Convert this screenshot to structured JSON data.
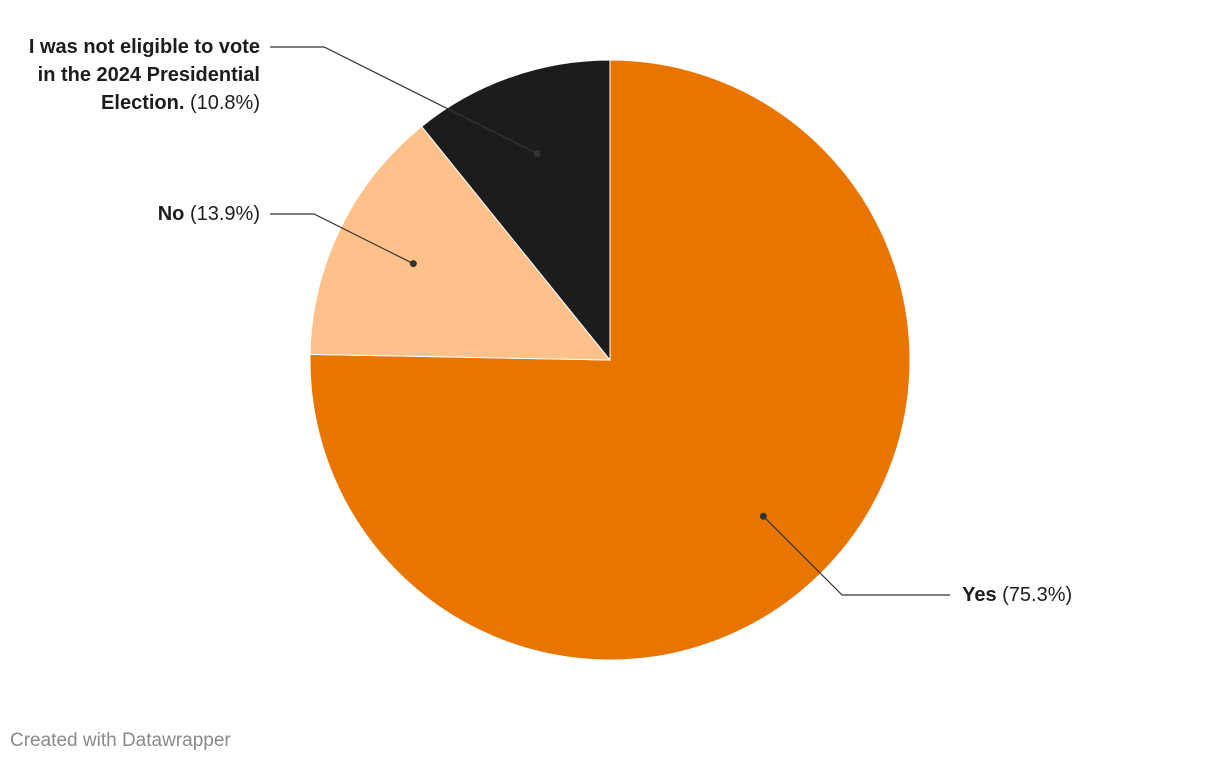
{
  "chart_data": {
    "type": "pie",
    "categories": [
      "Yes",
      "No",
      "I was not eligible to vote in the 2024 Presidential Election."
    ],
    "values": [
      75.3,
      13.9,
      10.8
    ],
    "value_labels": [
      "(75.3%)",
      "(13.9%)",
      "(10.8%)"
    ],
    "colors": [
      "#e87500",
      "#fec18b",
      "#1c1c1c"
    ],
    "credit": "Created with Datawrapper"
  }
}
